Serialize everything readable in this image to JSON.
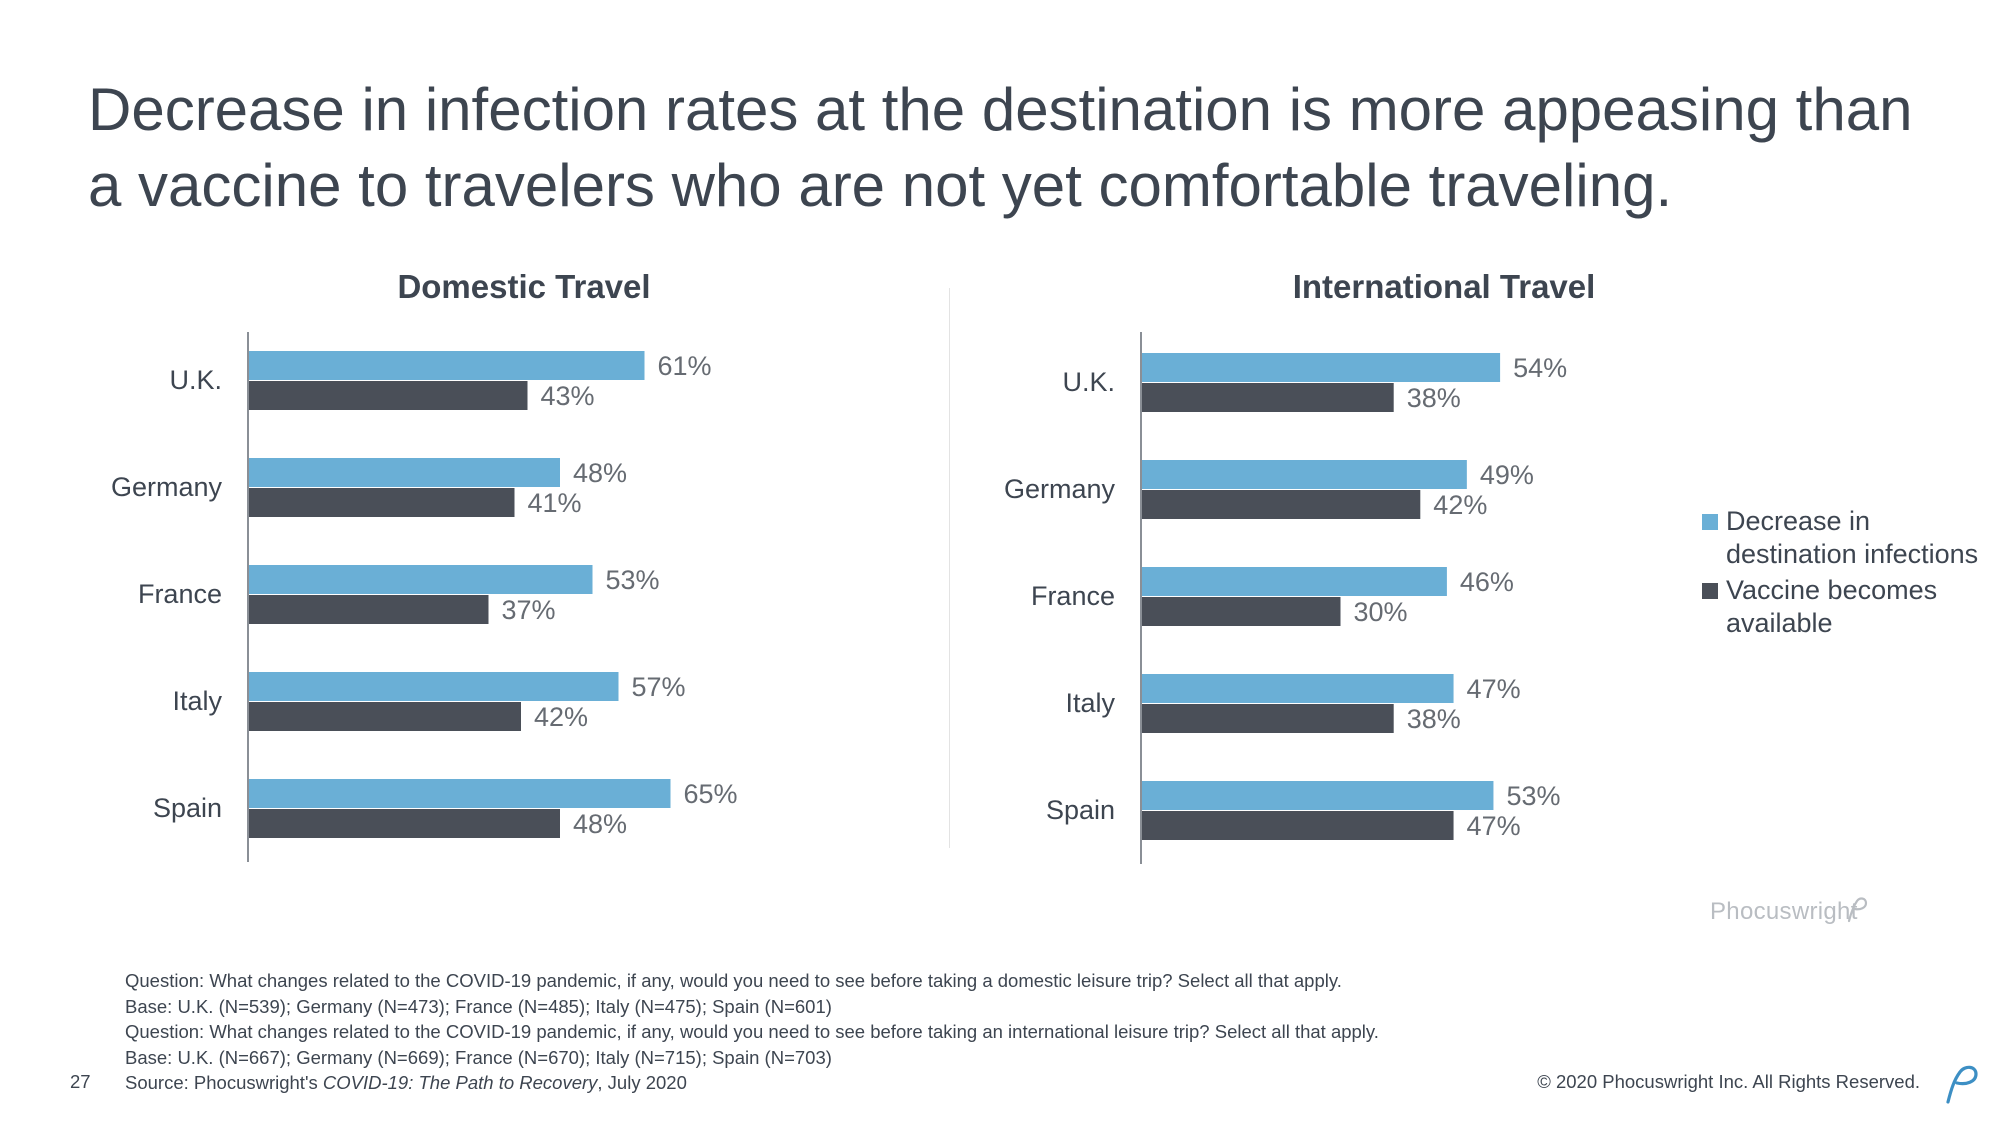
{
  "title": "Decrease in infection rates at the destination is more appeasing than a vaccine to travelers who are not yet comfortable traveling.",
  "colors": {
    "series1": "#6aafd6",
    "series2": "#4a4f58",
    "axis": "#8a8f96",
    "label": "#666b72"
  },
  "chart_data": [
    {
      "type": "bar",
      "orientation": "horizontal",
      "title": "Domestic Travel",
      "categories": [
        "U.K.",
        "Germany",
        "France",
        "Italy",
        "Spain"
      ],
      "series": [
        {
          "name": "Decrease in destination infections",
          "values": [
            61,
            48,
            53,
            57,
            65
          ],
          "labels": [
            "61%",
            "48%",
            "53%",
            "57%",
            "65%"
          ]
        },
        {
          "name": "Vaccine becomes available",
          "values": [
            43,
            41,
            37,
            42,
            48
          ],
          "labels": [
            "43%",
            "41%",
            "37%",
            "42%",
            "48%"
          ]
        }
      ],
      "xlim": [
        0,
        100
      ]
    },
    {
      "type": "bar",
      "orientation": "horizontal",
      "title": "International Travel",
      "categories": [
        "U.K.",
        "Germany",
        "France",
        "Italy",
        "Spain"
      ],
      "series": [
        {
          "name": "Decrease in destination infections",
          "values": [
            54,
            49,
            46,
            47,
            53
          ],
          "labels": [
            "54%",
            "49%",
            "46%",
            "47%",
            "53%"
          ]
        },
        {
          "name": "Vaccine becomes available",
          "values": [
            38,
            42,
            30,
            38,
            47
          ],
          "labels": [
            "38%",
            "42%",
            "30%",
            "38%",
            "47%"
          ]
        }
      ],
      "xlim": [
        0,
        100
      ],
      "legend_position": "right"
    }
  ],
  "legend": {
    "series1": "Decrease in destination infections",
    "series2": "Vaccine becomes available"
  },
  "logo": "Phocuswright",
  "footnotes": {
    "q1": "Question: What changes related to the COVID-19 pandemic, if any, would you need to see before taking a domestic leisure trip? Select all that apply.",
    "b1": "Base: U.K. (N=539); Germany (N=473); France (N=485); Italy (N=475); Spain (N=601)",
    "q2": "Question: What changes related to the COVID-19 pandemic, if any, would you need to see before taking an international leisure trip? Select all that apply.",
    "b2": "Base: U.K. (N=667); Germany (N=669); France (N=670); Italy (N=715); Spain (N=703)",
    "source_prefix": "Source: Phocuswright's ",
    "source_title": "COVID-19: The Path to Recovery",
    "source_suffix": ", July 2020"
  },
  "page_number": "27",
  "copyright": "© 2020 Phocuswright Inc. All Rights Reserved."
}
